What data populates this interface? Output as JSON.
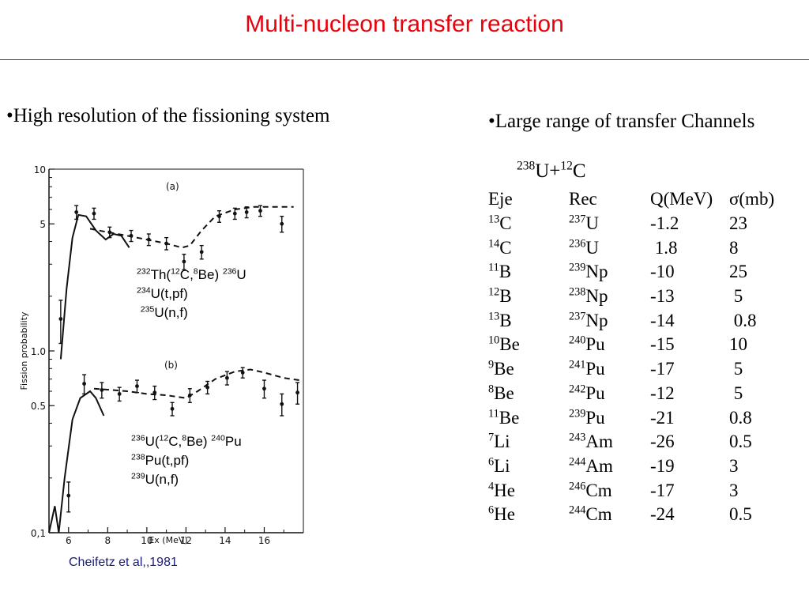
{
  "slide": {
    "title": "Multi-nucleon transfer reaction",
    "left_heading": "•High resolution of the fissioning system",
    "right_heading": "•Large range of transfer Channels",
    "citation": "Cheifetz et al,,1981",
    "accent_color": "#e8000b",
    "rule_color": "#3a3adf"
  },
  "reaction": {
    "pre": "238",
    "a": "U+",
    "pre2": "12",
    "b": "C"
  },
  "table": {
    "headers": [
      "Eje",
      "Rec",
      "Q(MeV)",
      "σ(mb)"
    ],
    "rows": [
      {
        "ej_a": "13",
        "ej": "C",
        "rec_a": "237",
        "rec": "U",
        "q": "-1.2",
        "sigma": "23"
      },
      {
        "ej_a": "14",
        "ej": "C",
        "rec_a": "236",
        "rec": "U",
        "q": " 1.8",
        "sigma": "8"
      },
      {
        "ej_a": "11",
        "ej": "B",
        "rec_a": "239",
        "rec": "Np",
        "q": "-10",
        "sigma": "25"
      },
      {
        "ej_a": "12",
        "ej": "B",
        "rec_a": "238",
        "rec": "Np",
        "q": "-13",
        "sigma": " 5"
      },
      {
        "ej_a": "13",
        "ej": "B",
        "rec_a": "237",
        "rec": "Np",
        "q": "-14",
        "sigma": " 0.8"
      },
      {
        "ej_a": "10",
        "ej": "Be",
        "rec_a": "240",
        "rec": "Pu",
        "q": "-15",
        "sigma": "10"
      },
      {
        "ej_a": "9",
        "ej": "Be",
        "rec_a": "241",
        "rec": "Pu",
        "q": "-17",
        "sigma": " 5"
      },
      {
        "ej_a": "8",
        "ej": "Be",
        "rec_a": "242",
        "rec": "Pu",
        "q": "-12",
        "sigma": " 5"
      },
      {
        "ej_a": "11",
        "ej": "Be",
        "rec_a": "239",
        "rec": "Pu",
        "q": "-21",
        "sigma": "0.8"
      },
      {
        "ej_a": "7",
        "ej": "Li",
        "rec_a": "243",
        "rec": "Am",
        "q": "-26",
        "sigma": "0.5"
      },
      {
        "ej_a": "6",
        "ej": "Li",
        "rec_a": "244",
        "rec": "Am",
        "q": "-19",
        "sigma": "3"
      },
      {
        "ej_a": "4",
        "ej": "He",
        "rec_a": "246",
        "rec": "Cm",
        "q": "-17",
        "sigma": "3"
      },
      {
        "ej_a": "6",
        "ej": "He",
        "rec_a": "244",
        "rec": "Cm",
        "q": "-24",
        "sigma": "0.5"
      }
    ]
  },
  "notes": {
    "a": [
      [
        {
          "s": "232"
        },
        {
          "t": "Th("
        },
        {
          "s": "12"
        },
        {
          "t": "C,"
        },
        {
          "s": "8"
        },
        {
          "t": "Be) "
        },
        {
          "s": "236"
        },
        {
          "t": "U"
        }
      ],
      [
        {
          "s": "234"
        },
        {
          "t": "U(t,pf)"
        }
      ],
      [
        {
          "t": " "
        },
        {
          "s": "235"
        },
        {
          "t": "U(n,f)"
        }
      ]
    ],
    "b": [
      [
        {
          "s": "236"
        },
        {
          "t": "U("
        },
        {
          "s": "12"
        },
        {
          "t": "C,"
        },
        {
          "s": "8"
        },
        {
          "t": "Be) "
        },
        {
          "s": "240"
        },
        {
          "t": "Pu"
        }
      ],
      [
        {
          "s": "238"
        },
        {
          "t": "Pu(t,pf)"
        }
      ],
      [
        {
          "s": "239"
        },
        {
          "t": "U(n,f)"
        }
      ]
    ]
  },
  "chart_data": {
    "type": "line",
    "xlabel": "Ex (MeV)",
    "ylabel": "Fission probability",
    "xlim": [
      5,
      18
    ],
    "ylim": [
      0.1,
      10
    ],
    "y_scale": "log",
    "x_ticks": [
      6,
      8,
      10,
      12,
      14,
      16
    ],
    "y_ticks": [
      {
        "value": 10,
        "label": "10"
      },
      {
        "value": 5,
        "label": "5"
      },
      {
        "value": 1.0,
        "label": "1.0"
      },
      {
        "value": 0.5,
        "label": "0.5"
      },
      {
        "value": 0.1,
        "label": "0,1"
      }
    ],
    "panels": [
      {
        "label": "(a)",
        "points": [
          {
            "x": 5.6,
            "y": 1.5,
            "err": 0.4
          },
          {
            "x": 6.4,
            "y": 5.8,
            "err": 0.5
          },
          {
            "x": 7.3,
            "y": 5.7,
            "err": 0.4
          },
          {
            "x": 8.1,
            "y": 4.5,
            "err": 0.3
          },
          {
            "x": 9.2,
            "y": 4.3,
            "err": 0.3
          },
          {
            "x": 10.1,
            "y": 4.1,
            "err": 0.3
          },
          {
            "x": 11.0,
            "y": 3.9,
            "err": 0.3
          },
          {
            "x": 11.9,
            "y": 3.1,
            "err": 0.3
          },
          {
            "x": 12.8,
            "y": 3.5,
            "err": 0.3
          },
          {
            "x": 13.7,
            "y": 5.5,
            "err": 0.4
          },
          {
            "x": 14.5,
            "y": 5.7,
            "err": 0.4
          },
          {
            "x": 15.1,
            "y": 5.8,
            "err": 0.4
          },
          {
            "x": 15.8,
            "y": 5.9,
            "err": 0.4
          },
          {
            "x": 16.9,
            "y": 5.0,
            "err": 0.5
          }
        ],
        "solid": [
          [
            5.6,
            0.9
          ],
          [
            5.9,
            2.2
          ],
          [
            6.2,
            4.2
          ],
          [
            6.5,
            5.6
          ],
          [
            6.9,
            5.5
          ],
          [
            7.4,
            4.6
          ],
          [
            7.9,
            4.1
          ],
          [
            8.3,
            4.4
          ],
          [
            8.7,
            4.3
          ],
          [
            9.1,
            3.7
          ]
        ],
        "dashed": [
          [
            7.1,
            4.7
          ],
          [
            8.0,
            4.5
          ],
          [
            9.0,
            4.3
          ],
          [
            10.0,
            4.1
          ],
          [
            11.0,
            3.9
          ],
          [
            11.8,
            3.7
          ],
          [
            12.2,
            3.8
          ],
          [
            12.8,
            4.6
          ],
          [
            13.5,
            5.5
          ],
          [
            14.5,
            6.0
          ],
          [
            15.5,
            6.2
          ],
          [
            16.5,
            6.2
          ],
          [
            17.5,
            6.2
          ]
        ]
      },
      {
        "label": "(b)",
        "points": [
          {
            "x": 6.0,
            "y": 0.16,
            "err": 0.03
          },
          {
            "x": 6.8,
            "y": 0.66,
            "err": 0.08
          },
          {
            "x": 7.7,
            "y": 0.61,
            "err": 0.06
          },
          {
            "x": 8.6,
            "y": 0.58,
            "err": 0.05
          },
          {
            "x": 9.5,
            "y": 0.64,
            "err": 0.05
          },
          {
            "x": 10.4,
            "y": 0.59,
            "err": 0.05
          },
          {
            "x": 11.3,
            "y": 0.48,
            "err": 0.04
          },
          {
            "x": 12.2,
            "y": 0.57,
            "err": 0.05
          },
          {
            "x": 13.1,
            "y": 0.63,
            "err": 0.05
          },
          {
            "x": 14.1,
            "y": 0.71,
            "err": 0.06
          },
          {
            "x": 14.9,
            "y": 0.76,
            "err": 0.05
          },
          {
            "x": 16.0,
            "y": 0.62,
            "err": 0.07
          },
          {
            "x": 16.9,
            "y": 0.51,
            "err": 0.07
          },
          {
            "x": 17.7,
            "y": 0.59,
            "err": 0.08
          }
        ],
        "solid": [
          [
            5.0,
            0.1
          ],
          [
            5.3,
            0.14
          ],
          [
            5.5,
            0.1
          ],
          [
            5.8,
            0.2
          ],
          [
            6.2,
            0.42
          ],
          [
            6.6,
            0.55
          ],
          [
            7.1,
            0.6
          ],
          [
            7.4,
            0.55
          ],
          [
            7.8,
            0.44
          ]
        ],
        "dashed": [
          [
            7.3,
            0.62
          ],
          [
            8.2,
            0.61
          ],
          [
            9.0,
            0.6
          ],
          [
            10.0,
            0.58
          ],
          [
            11.0,
            0.57
          ],
          [
            12.0,
            0.55
          ],
          [
            12.6,
            0.6
          ],
          [
            13.5,
            0.7
          ],
          [
            14.5,
            0.77
          ],
          [
            15.3,
            0.79
          ],
          [
            16.0,
            0.76
          ],
          [
            17.0,
            0.71
          ],
          [
            17.8,
            0.69
          ]
        ]
      }
    ]
  }
}
